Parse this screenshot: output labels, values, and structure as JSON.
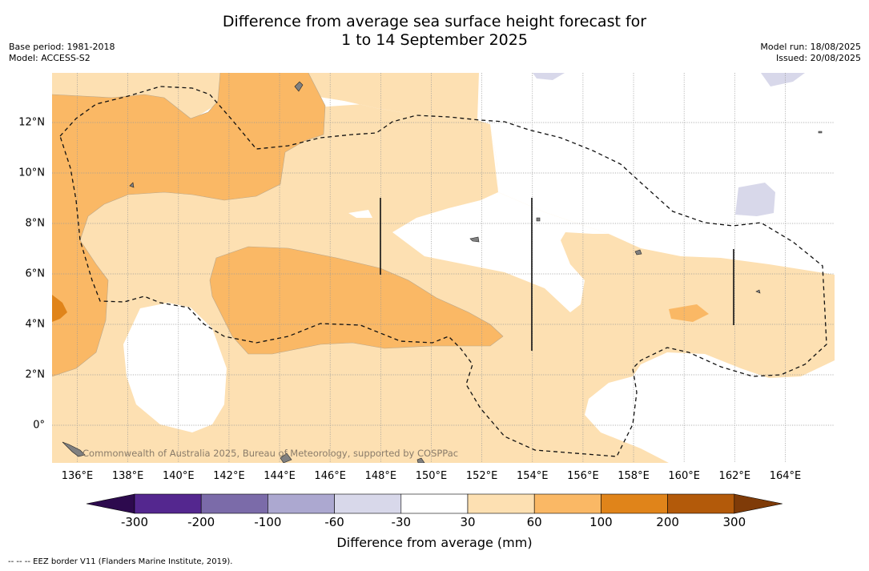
{
  "title_line1": "Difference from average sea surface height forecast for",
  "title_line2": "1 to 14 September 2025",
  "base_period": "Base period: 1981-2018",
  "model": "Model: ACCESS-S2",
  "model_run": "Model run: 18/08/2025",
  "issued": "Issued: 20/08/2025",
  "watermark": "Commonwealth of Australia 2025, Bureau of Meteorology, supported by COSPPac",
  "footnote": "--  --  -- EEZ border V11 (Flanders Marine Institute, 2019).",
  "x_ticks": [
    "136°E",
    "138°E",
    "140°E",
    "142°E",
    "144°E",
    "146°E",
    "148°E",
    "150°E",
    "152°E",
    "154°E",
    "156°E",
    "158°E",
    "160°E",
    "162°E",
    "164°E"
  ],
  "y_ticks": [
    "12°N",
    "10°N",
    "8°N",
    "6°N",
    "4°N",
    "2°N",
    "0°"
  ],
  "colorbar": {
    "title": "Difference from average (mm)",
    "labels": [
      "-300",
      "-200",
      "-100",
      "-60",
      "-30",
      "30",
      "60",
      "100",
      "200",
      "300"
    ],
    "colors": {
      "below_min": "#2d0a4e",
      "bins": [
        "#54278f",
        "#7b6ba9",
        "#aca8d0",
        "#d8d8ea",
        "#ffffff",
        "#fde0b2",
        "#fab865",
        "#e0841a",
        "#b35a0a"
      ],
      "above_max": "#7f3b08"
    }
  },
  "map_colors": {
    "positive_30_60": "#fde0b2",
    "positive_60_100": "#fab865",
    "positive_100_200": "#e0841a",
    "negative_60_30": "#d8d8ea",
    "land": "#808080"
  }
}
